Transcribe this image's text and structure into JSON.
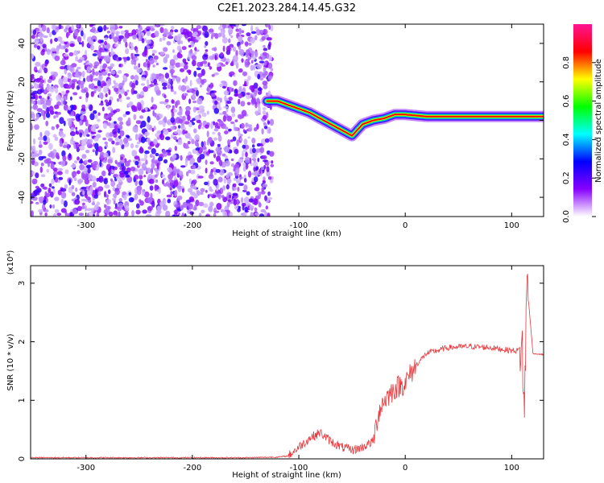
{
  "chart_data": [
    {
      "type": "heatmap",
      "title": "C2E1.2023.284.14.45.G32",
      "xlabel": "Height of straight line (km)",
      "ylabel": "Frequency (Hz)",
      "xlim": [
        -352,
        130
      ],
      "ylim": [
        -50,
        50
      ],
      "xticks": [
        -300,
        -200,
        -100,
        0,
        100
      ],
      "yticks": [
        -40,
        -20,
        0,
        20,
        40
      ],
      "colorbar": {
        "label": "Normalized spectral amplitude",
        "range": [
          0,
          1
        ],
        "ticks": [
          0.0,
          0.2,
          0.4,
          0.6,
          0.8
        ],
        "colors": [
          "#ffffff",
          "#8800ff",
          "#0000ff",
          "#00ffff",
          "#00ff00",
          "#ffff00",
          "#ff0000",
          "#ff1493"
        ]
      },
      "ridge": {
        "x": [
          -130,
          -120,
          -110,
          -100,
          -90,
          -80,
          -70,
          -60,
          -50,
          -45,
          -40,
          -30,
          -20,
          -10,
          0,
          20,
          40,
          60,
          80,
          100,
          110,
          130
        ],
        "y": [
          10,
          10,
          8,
          6,
          4,
          1,
          -2,
          -5,
          -8,
          -5,
          -2,
          0,
          1,
          3,
          3,
          2,
          2,
          2,
          2,
          2,
          2,
          2
        ]
      },
      "noise_region": {
        "x_from": -352,
        "x_to": -125
      },
      "grid": false
    },
    {
      "type": "line",
      "xlabel": "Height of straight line (km)",
      "ylabel": "SNR (10 * v/v)",
      "y_multiplier": "(x10⁴)",
      "xlim": [
        -352,
        130
      ],
      "ylim": [
        0,
        3.3
      ],
      "xticks": [
        -300,
        -200,
        -100,
        0,
        100
      ],
      "yticks": [
        0,
        1,
        2,
        3
      ],
      "color": "#e8383d",
      "profile": {
        "x": [
          -352,
          -300,
          -250,
          -200,
          -150,
          -120,
          -110,
          -100,
          -90,
          -80,
          -70,
          -60,
          -50,
          -40,
          -30,
          -25,
          -20,
          -10,
          0,
          10,
          20,
          30,
          40,
          60,
          80,
          100,
          105,
          110,
          112,
          114,
          120,
          130
        ],
        "y": [
          0.02,
          0.02,
          0.02,
          0.02,
          0.02,
          0.03,
          0.05,
          0.2,
          0.35,
          0.45,
          0.3,
          0.2,
          0.15,
          0.2,
          0.3,
          0.8,
          1.0,
          1.2,
          1.3,
          1.6,
          1.8,
          1.85,
          1.9,
          1.92,
          1.9,
          1.85,
          1.85,
          1.9,
          0.6,
          3.1,
          1.8,
          1.78
        ]
      },
      "grid": false
    }
  ]
}
